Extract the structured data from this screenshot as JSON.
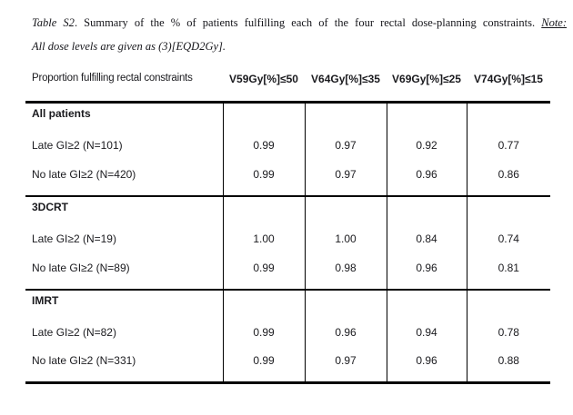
{
  "caption": {
    "label": "Table S2",
    "body": ". Summary of the % of patients fulfilling each of the four rectal dose-planning constraints. ",
    "note": "Note:",
    "line2": "All dose levels are given as (3)[EQD2Gy]."
  },
  "header": {
    "row_label": "Proportion fulfilling rectal constraints",
    "columns": [
      "V59Gy[%]≤50",
      "V64Gy[%]≤35",
      "V69Gy[%]≤25",
      "V74Gy[%]≤15"
    ]
  },
  "table": {
    "sections": [
      {
        "name": "All patients",
        "rows": [
          {
            "label": "Late GI≥2 (N=101)",
            "values": [
              "0.99",
              "0.97",
              "0.92",
              "0.77"
            ]
          },
          {
            "label": "No late GI≥2 (N=420)",
            "values": [
              "0.99",
              "0.97",
              "0.96",
              "0.86"
            ]
          }
        ]
      },
      {
        "name": "3DCRT",
        "rows": [
          {
            "label": "Late GI≥2 (N=19)",
            "values": [
              "1.00",
              "1.00",
              "0.84",
              "0.74"
            ]
          },
          {
            "label": "No late GI≥2 (N=89)",
            "values": [
              "0.99",
              "0.98",
              "0.96",
              "0.81"
            ]
          }
        ]
      },
      {
        "name": "IMRT",
        "rows": [
          {
            "label": "Late GI≥2 (N=82)",
            "values": [
              "0.99",
              "0.96",
              "0.94",
              "0.78"
            ]
          },
          {
            "label": "No late GI≥2 (N=331)",
            "values": [
              "0.99",
              "0.97",
              "0.96",
              "0.88"
            ]
          }
        ]
      }
    ]
  }
}
